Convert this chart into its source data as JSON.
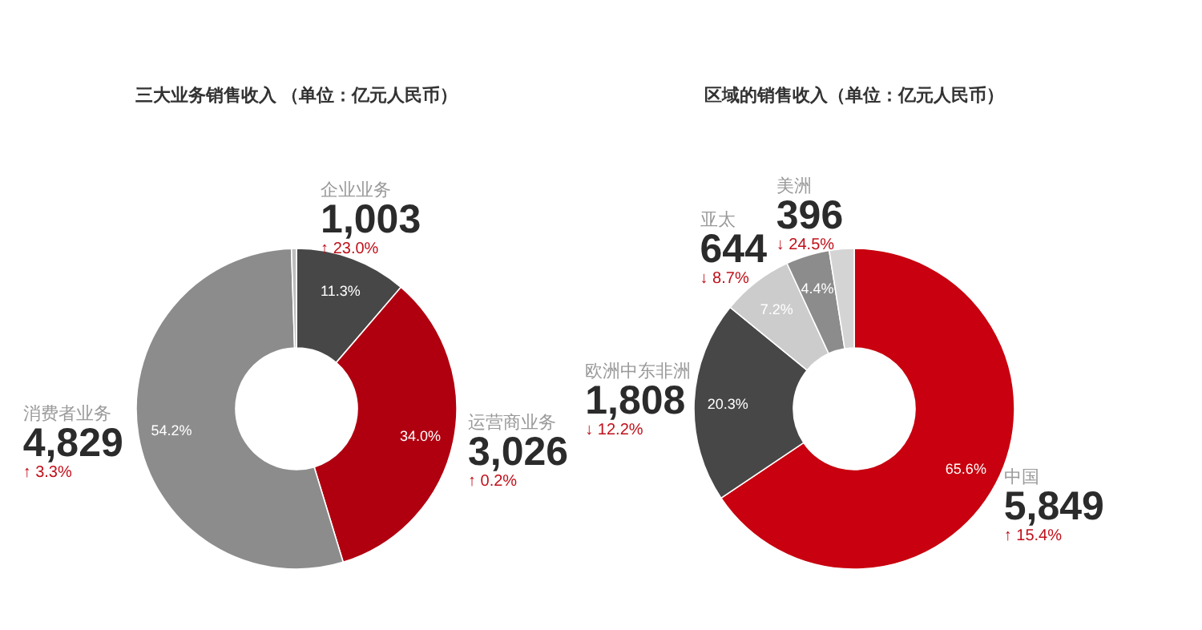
{
  "chart_data": [
    {
      "type": "donut",
      "title": "三大业务销售收入 （单位：亿元人民币）",
      "categories": [
        "企业业务",
        "运营商业务",
        "消费者业务",
        null
      ],
      "values": [
        11.3,
        34.0,
        54.2,
        0.5
      ],
      "colors": [
        "#474747",
        "#b00010",
        "#8c8c8c",
        "#bdbdbd"
      ],
      "value_labels": [
        "11.3%",
        "34.0%",
        "54.2%",
        null
      ],
      "annotations": [
        {
          "text": "1,003",
          "x": "企业业务"
        },
        {
          "text": "↑ 23.0%",
          "x": "企业业务"
        },
        {
          "text": "3,026",
          "x": "运营商业务"
        },
        {
          "text": "↑ 0.2%",
          "x": "运营商业务"
        },
        {
          "text": "4,829",
          "x": "消费者业务"
        },
        {
          "text": "↑ 3.3%",
          "x": "消费者业务"
        }
      ]
    },
    {
      "type": "donut",
      "title": "区域的销售收入（单位：亿元人民币）",
      "categories": [
        "中国",
        "欧洲中东非洲",
        "亚太",
        "美洲",
        null
      ],
      "values": [
        65.6,
        20.3,
        7.2,
        4.4,
        2.5
      ],
      "colors": [
        "#c8000f",
        "#474747",
        "#cccccc",
        "#8c8c8c",
        "#d4d4d4"
      ],
      "value_labels": [
        "65.6%",
        "20.3%",
        "7.2%",
        "4.4%",
        null
      ],
      "annotations": [
        {
          "text": "5,849",
          "x": "中国"
        },
        {
          "text": "↑ 15.4%",
          "x": "中国"
        },
        {
          "text": "1,808",
          "x": "欧洲中东非洲"
        },
        {
          "text": "↓ 12.2%",
          "x": "欧洲中东非洲"
        },
        {
          "text": "644",
          "x": "亚太"
        },
        {
          "text": "↓ 8.7%",
          "x": "亚太"
        },
        {
          "text": "396",
          "x": "美洲"
        },
        {
          "text": "↓ 24.5%",
          "x": "美洲"
        }
      ]
    }
  ]
}
